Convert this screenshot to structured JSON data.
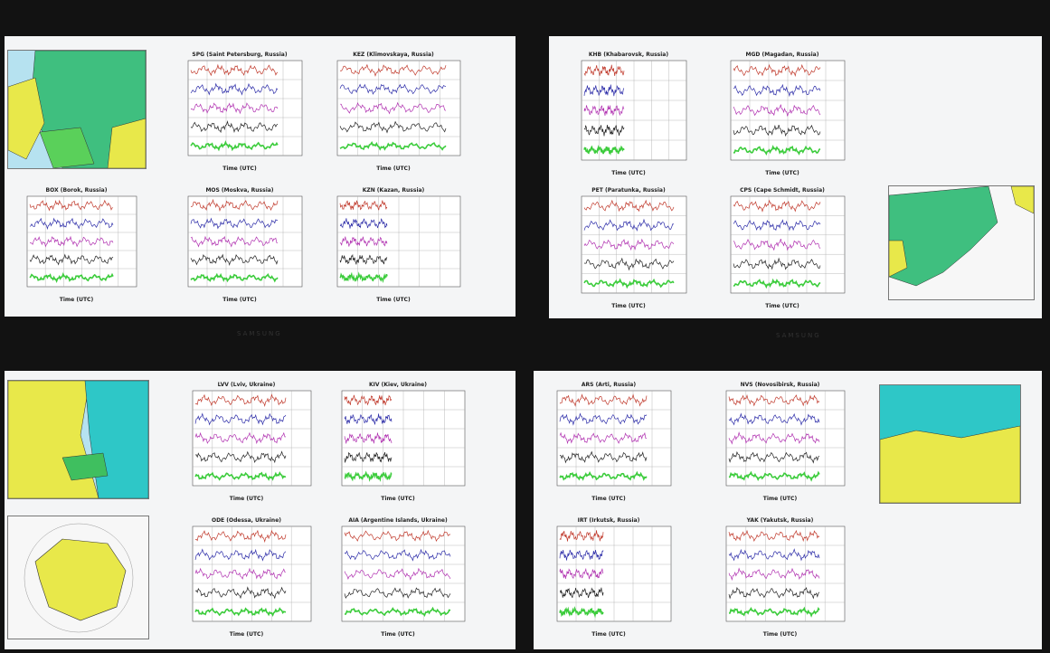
{
  "screens": [
    {
      "plots": [
        {
          "title": "SPG  (Saint Petersburg, Russia)",
          "xlabel": "Time (UTC)"
        },
        {
          "title": "KEZ  (Klimovskaya, Russia)",
          "xlabel": "Time (UTC)"
        },
        {
          "title": "BOX  (Borok, Russia)",
          "xlabel": "Time (UTC)"
        },
        {
          "title": "MOS  (Moskva, Russia)",
          "xlabel": "Time (UTC)"
        },
        {
          "title": "KZN  (Kazan, Russia)",
          "xlabel": "Time (UTC)"
        }
      ]
    },
    {
      "plots": [
        {
          "title": "KHB  (Khabarovsk, Russia)",
          "xlabel": "Time (UTC)"
        },
        {
          "title": "MGD  (Magadan, Russia)",
          "xlabel": "Time (UTC)"
        },
        {
          "title": "PET  (Paratunka, Russia)",
          "xlabel": "Time (UTC)"
        },
        {
          "title": "CPS  (Cape Schmidt, Russia)",
          "xlabel": "Time (UTC)"
        }
      ]
    },
    {
      "plots": [
        {
          "title": "LVV  (Lviv, Ukraine)",
          "xlabel": "Time (UTC)"
        },
        {
          "title": "KIV  (Kiev, Ukraine)",
          "xlabel": "Time (UTC)"
        },
        {
          "title": "ODE  (Odessa, Ukraine)",
          "xlabel": "Time (UTC)"
        },
        {
          "title": "AIA  (Argentine Islands, Ukraine)",
          "xlabel": "Time (UTC)"
        }
      ]
    },
    {
      "plots": [
        {
          "title": "ARS  (Arti, Russia)",
          "xlabel": "Time (UTC)"
        },
        {
          "title": "NVS  (Novosibirsk, Russia)",
          "xlabel": "Time (UTC)"
        },
        {
          "title": "IRT  (Irkutsk, Russia)",
          "xlabel": "Time (UTC)"
        },
        {
          "title": "YAK  (Yakutsk, Russia)",
          "xlabel": "Time (UTC)"
        }
      ]
    }
  ]
}
